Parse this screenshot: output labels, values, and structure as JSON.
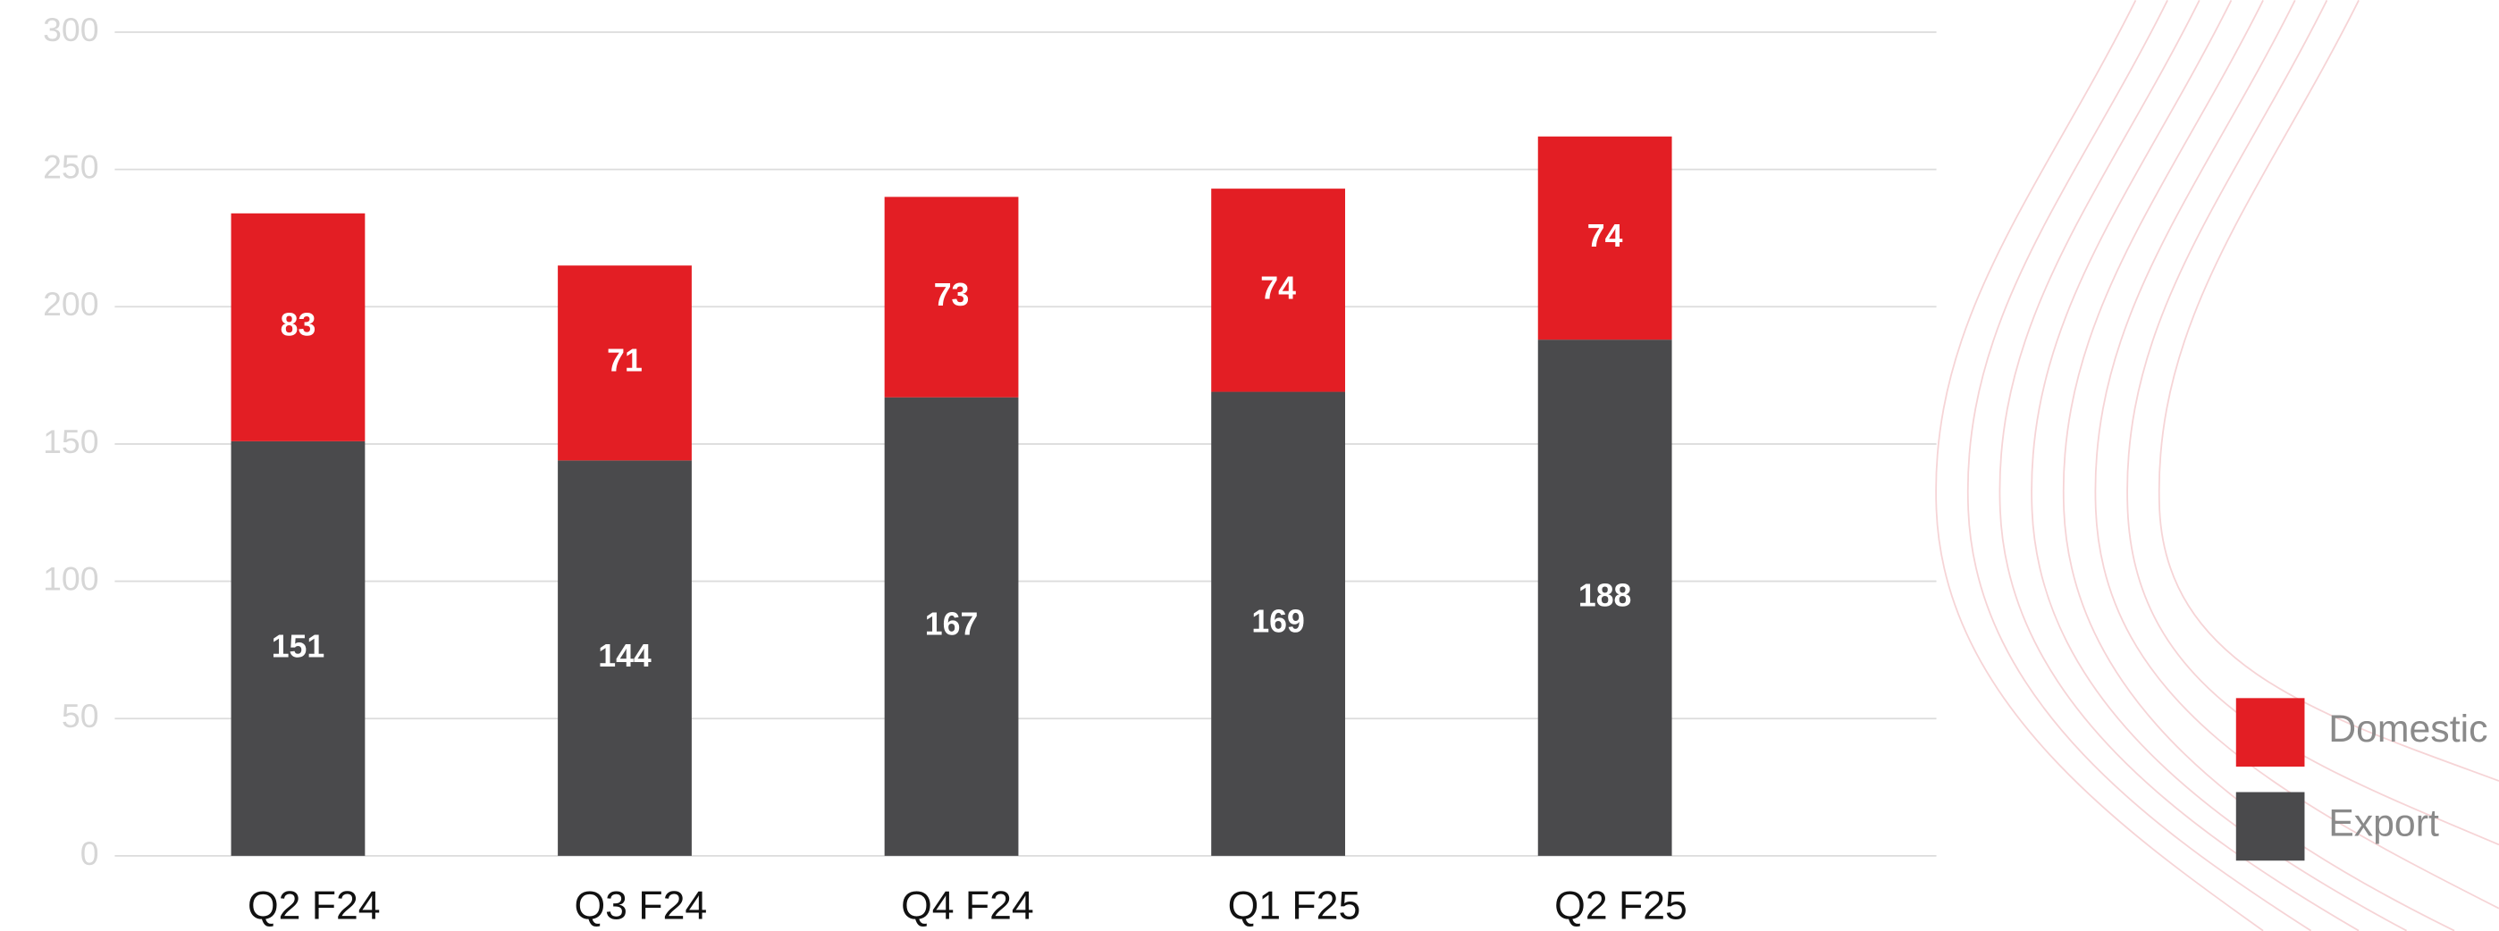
{
  "chart_data": {
    "type": "stacked_bar",
    "categories": [
      "Q2 F24",
      "Q3 F24",
      "Q4 F24",
      "Q1 F25",
      "Q2 F25"
    ],
    "series": [
      {
        "name": "Export",
        "color": "#4a4a4c",
        "values": [
          151,
          144,
          167,
          169,
          188
        ]
      },
      {
        "name": "Domestic",
        "color": "#e31e24",
        "values": [
          83,
          71,
          73,
          74,
          74
        ]
      }
    ],
    "ylim": [
      0,
      300
    ],
    "yticks": [
      0,
      50,
      100,
      150,
      200,
      250,
      300
    ],
    "grid": true,
    "legend": "right"
  }
}
